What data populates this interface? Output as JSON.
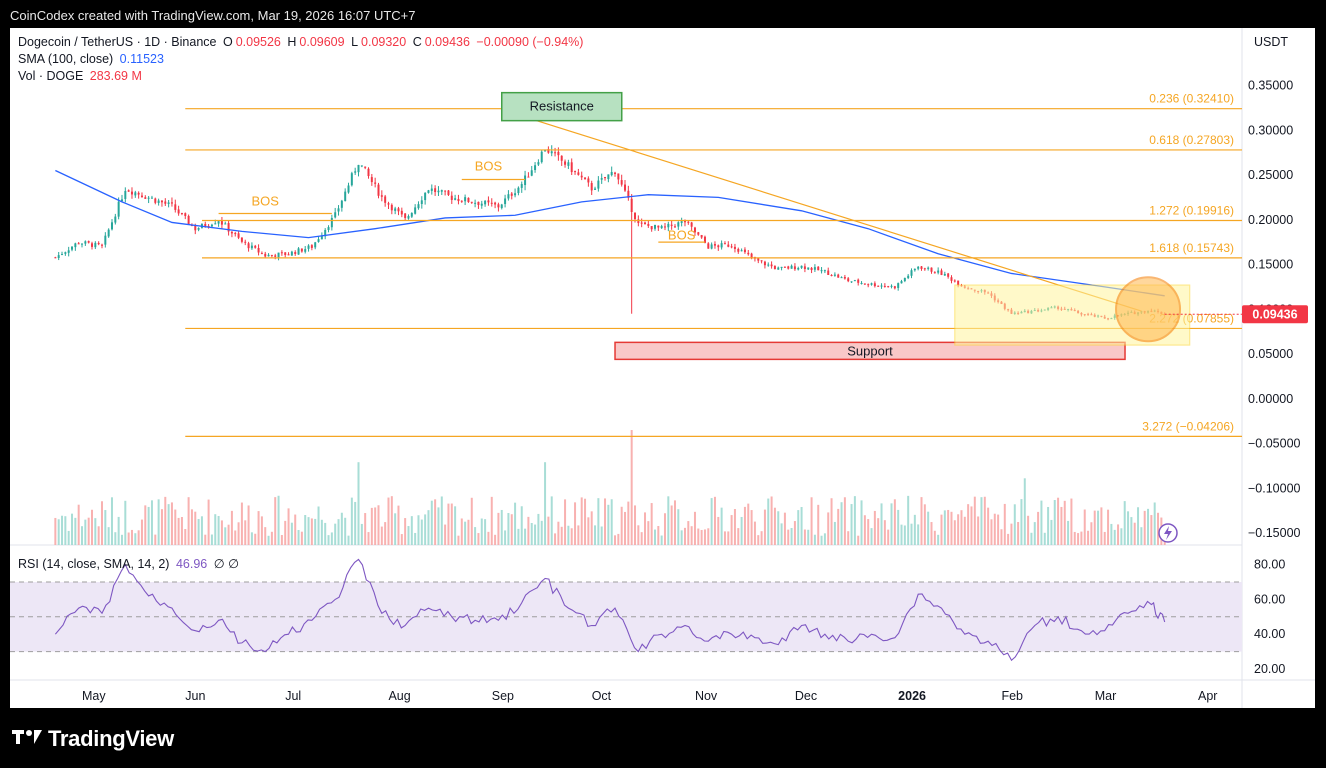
{
  "header": {
    "text": "CoinCodex created with TradingView.com, Mar 19, 2026 16:07 UTC+7"
  },
  "legend": {
    "symbol": "Dogecoin / TetherUS · 1D · Binance",
    "o_label": "O",
    "o": "0.09526",
    "h_label": "H",
    "h": "0.09609",
    "l_label": "L",
    "l": "0.09320",
    "c_label": "C",
    "c": "0.09436",
    "change": "−0.00090 (−0.94%)",
    "sma_label": "SMA (100, close)",
    "sma_value": "0.11523",
    "vol_label": "Vol · DOGE",
    "vol_value": "283.69 M",
    "rsi_label": "RSI (14, close, SMA, 14, 2)",
    "rsi_value": "46.96",
    "rsi_icons": "∅ ∅"
  },
  "footer": {
    "brand": "TradingView"
  },
  "chart_data": {
    "type": "candlestick",
    "currency": "USDT",
    "last_price": "0.09436",
    "price_axis": {
      "ticks": [
        0.35,
        0.3,
        0.25,
        0.2,
        0.15,
        0.1,
        0.05,
        0.0,
        -0.05,
        -0.1,
        -0.15
      ],
      "tick_labels": [
        "0.35000",
        "0.30000",
        "0.25000",
        "0.20000",
        "0.15000",
        "0.10000",
        "0.05000",
        "0.00000",
        "−0.05000",
        "−0.10000",
        "−0.15000"
      ]
    },
    "x_axis": {
      "labels": [
        "May",
        "Jun",
        "Jul",
        "Aug",
        "Sep",
        "Oct",
        "Nov",
        "Dec",
        "2026",
        "Feb",
        "Mar",
        "Apr"
      ]
    },
    "fib_levels": [
      {
        "ratio": "0.236",
        "price": 0.3241,
        "label": "0.236 (0.32410)"
      },
      {
        "ratio": "0.618",
        "price": 0.27803,
        "label": "0.618 (0.27803)"
      },
      {
        "ratio": "1.272",
        "price": 0.19916,
        "label": "1.272 (0.19916)"
      },
      {
        "ratio": "1.618",
        "price": 0.15743,
        "label": "1.618 (0.15743)"
      },
      {
        "ratio": "2.272",
        "price": 0.07855,
        "label": "2.272 (0.07855)"
      },
      {
        "ratio": "3.272",
        "price": -0.04206,
        "label": "3.272 (−0.04206)"
      }
    ],
    "annotations": {
      "resistance": "Resistance",
      "support": "Support",
      "bos": [
        "BOS",
        "BOS",
        "BOS"
      ]
    },
    "close_series": [
      {
        "date": "2025-04-20",
        "close": 0.158
      },
      {
        "date": "2025-04-27",
        "close": 0.175
      },
      {
        "date": "2025-05-04",
        "close": 0.17
      },
      {
        "date": "2025-05-11",
        "close": 0.235
      },
      {
        "date": "2025-05-18",
        "close": 0.225
      },
      {
        "date": "2025-05-25",
        "close": 0.215
      },
      {
        "date": "2025-06-01",
        "close": 0.19
      },
      {
        "date": "2025-06-08",
        "close": 0.2
      },
      {
        "date": "2025-06-15",
        "close": 0.175
      },
      {
        "date": "2025-06-22",
        "close": 0.16
      },
      {
        "date": "2025-06-29",
        "close": 0.162
      },
      {
        "date": "2025-07-06",
        "close": 0.17
      },
      {
        "date": "2025-07-13",
        "close": 0.205
      },
      {
        "date": "2025-07-20",
        "close": 0.265
      },
      {
        "date": "2025-07-27",
        "close": 0.225
      },
      {
        "date": "2025-08-03",
        "close": 0.2
      },
      {
        "date": "2025-08-10",
        "close": 0.235
      },
      {
        "date": "2025-08-17",
        "close": 0.225
      },
      {
        "date": "2025-08-24",
        "close": 0.22
      },
      {
        "date": "2025-08-31",
        "close": 0.215
      },
      {
        "date": "2025-09-07",
        "close": 0.24
      },
      {
        "date": "2025-09-14",
        "close": 0.28
      },
      {
        "date": "2025-09-21",
        "close": 0.26
      },
      {
        "date": "2025-09-28",
        "close": 0.235
      },
      {
        "date": "2025-10-05",
        "close": 0.255
      },
      {
        "date": "2025-10-12",
        "close": 0.195
      },
      {
        "date": "2025-10-19",
        "close": 0.19
      },
      {
        "date": "2025-10-26",
        "close": 0.198
      },
      {
        "date": "2025-11-02",
        "close": 0.17
      },
      {
        "date": "2025-11-09",
        "close": 0.172
      },
      {
        "date": "2025-11-16",
        "close": 0.155
      },
      {
        "date": "2025-11-23",
        "close": 0.145
      },
      {
        "date": "2025-11-30",
        "close": 0.148
      },
      {
        "date": "2025-12-07",
        "close": 0.142
      },
      {
        "date": "2025-12-14",
        "close": 0.132
      },
      {
        "date": "2025-12-21",
        "close": 0.128
      },
      {
        "date": "2025-12-28",
        "close": 0.125
      },
      {
        "date": "2026-01-04",
        "close": 0.148
      },
      {
        "date": "2026-01-11",
        "close": 0.14
      },
      {
        "date": "2026-01-18",
        "close": 0.125
      },
      {
        "date": "2026-01-25",
        "close": 0.118
      },
      {
        "date": "2026-02-01",
        "close": 0.095
      },
      {
        "date": "2026-02-08",
        "close": 0.098
      },
      {
        "date": "2026-02-15",
        "close": 0.102
      },
      {
        "date": "2026-02-22",
        "close": 0.095
      },
      {
        "date": "2026-03-01",
        "close": 0.09
      },
      {
        "date": "2026-03-08",
        "close": 0.095
      },
      {
        "date": "2026-03-15",
        "close": 0.099
      },
      {
        "date": "2026-03-19",
        "close": 0.09436
      }
    ],
    "sma100_series": [
      {
        "date": "2025-04-20",
        "value": 0.255
      },
      {
        "date": "2025-05-10",
        "value": 0.22
      },
      {
        "date": "2025-05-25",
        "value": 0.197
      },
      {
        "date": "2025-06-15",
        "value": 0.187
      },
      {
        "date": "2025-07-05",
        "value": 0.18
      },
      {
        "date": "2025-07-25",
        "value": 0.19
      },
      {
        "date": "2025-08-15",
        "value": 0.202
      },
      {
        "date": "2025-09-05",
        "value": 0.205
      },
      {
        "date": "2025-09-25",
        "value": 0.22
      },
      {
        "date": "2025-10-15",
        "value": 0.228
      },
      {
        "date": "2025-11-05",
        "value": 0.225
      },
      {
        "date": "2025-11-30",
        "value": 0.21
      },
      {
        "date": "2025-12-20",
        "value": 0.19
      },
      {
        "date": "2026-01-10",
        "value": 0.162
      },
      {
        "date": "2026-02-01",
        "value": 0.14
      },
      {
        "date": "2026-03-01",
        "value": 0.125
      },
      {
        "date": "2026-03-19",
        "value": 0.115
      }
    ],
    "volume_million": [
      {
        "date": "2025-07-20",
        "value": 1200
      },
      {
        "date": "2025-09-14",
        "value": 1100
      },
      {
        "date": "2025-10-10",
        "value": 1650
      },
      {
        "date": "2026-02-05",
        "value": 920
      },
      {
        "date": "2026-03-19",
        "value": 283.69
      }
    ],
    "rsi": {
      "ticks": [
        80,
        60,
        40,
        20
      ],
      "tick_labels": [
        "80.00",
        "60.00",
        "40.00",
        "20.00"
      ],
      "band": [
        30,
        70
      ],
      "current": 46.96,
      "series": [
        {
          "date": "2025-04-20",
          "value": 40
        },
        {
          "date": "2025-04-27",
          "value": 55
        },
        {
          "date": "2025-05-04",
          "value": 52
        },
        {
          "date": "2025-05-11",
          "value": 80
        },
        {
          "date": "2025-05-18",
          "value": 62
        },
        {
          "date": "2025-05-25",
          "value": 55
        },
        {
          "date": "2025-06-01",
          "value": 42
        },
        {
          "date": "2025-06-08",
          "value": 48
        },
        {
          "date": "2025-06-15",
          "value": 35
        },
        {
          "date": "2025-06-22",
          "value": 30
        },
        {
          "date": "2025-06-29",
          "value": 40
        },
        {
          "date": "2025-07-06",
          "value": 48
        },
        {
          "date": "2025-07-13",
          "value": 60
        },
        {
          "date": "2025-07-20",
          "value": 83
        },
        {
          "date": "2025-07-27",
          "value": 52
        },
        {
          "date": "2025-08-03",
          "value": 45
        },
        {
          "date": "2025-08-10",
          "value": 55
        },
        {
          "date": "2025-08-17",
          "value": 50
        },
        {
          "date": "2025-08-24",
          "value": 48
        },
        {
          "date": "2025-08-31",
          "value": 48
        },
        {
          "date": "2025-09-07",
          "value": 58
        },
        {
          "date": "2025-09-14",
          "value": 72
        },
        {
          "date": "2025-09-21",
          "value": 55
        },
        {
          "date": "2025-09-28",
          "value": 45
        },
        {
          "date": "2025-10-05",
          "value": 55
        },
        {
          "date": "2025-10-12",
          "value": 30
        },
        {
          "date": "2025-10-19",
          "value": 40
        },
        {
          "date": "2025-10-26",
          "value": 45
        },
        {
          "date": "2025-11-02",
          "value": 36
        },
        {
          "date": "2025-11-09",
          "value": 40
        },
        {
          "date": "2025-11-16",
          "value": 38
        },
        {
          "date": "2025-11-23",
          "value": 34
        },
        {
          "date": "2025-11-30",
          "value": 45
        },
        {
          "date": "2025-12-07",
          "value": 40
        },
        {
          "date": "2025-12-14",
          "value": 36
        },
        {
          "date": "2025-12-21",
          "value": 40
        },
        {
          "date": "2025-12-28",
          "value": 38
        },
        {
          "date": "2026-01-04",
          "value": 63
        },
        {
          "date": "2026-01-11",
          "value": 55
        },
        {
          "date": "2026-01-18",
          "value": 40
        },
        {
          "date": "2026-01-25",
          "value": 36
        },
        {
          "date": "2026-02-01",
          "value": 25
        },
        {
          "date": "2026-02-08",
          "value": 45
        },
        {
          "date": "2026-02-15",
          "value": 50
        },
        {
          "date": "2026-02-22",
          "value": 42
        },
        {
          "date": "2026-03-01",
          "value": 42
        },
        {
          "date": "2026-03-08",
          "value": 52
        },
        {
          "date": "2026-03-15",
          "value": 57
        },
        {
          "date": "2026-03-19",
          "value": 47
        }
      ]
    },
    "colors": {
      "up": "#26a69a",
      "down": "#f23645",
      "sma": "#2962ff",
      "fib": "#f5a623",
      "rsi": "#7e57c2",
      "rsi_band": "#ede7f6"
    }
  }
}
